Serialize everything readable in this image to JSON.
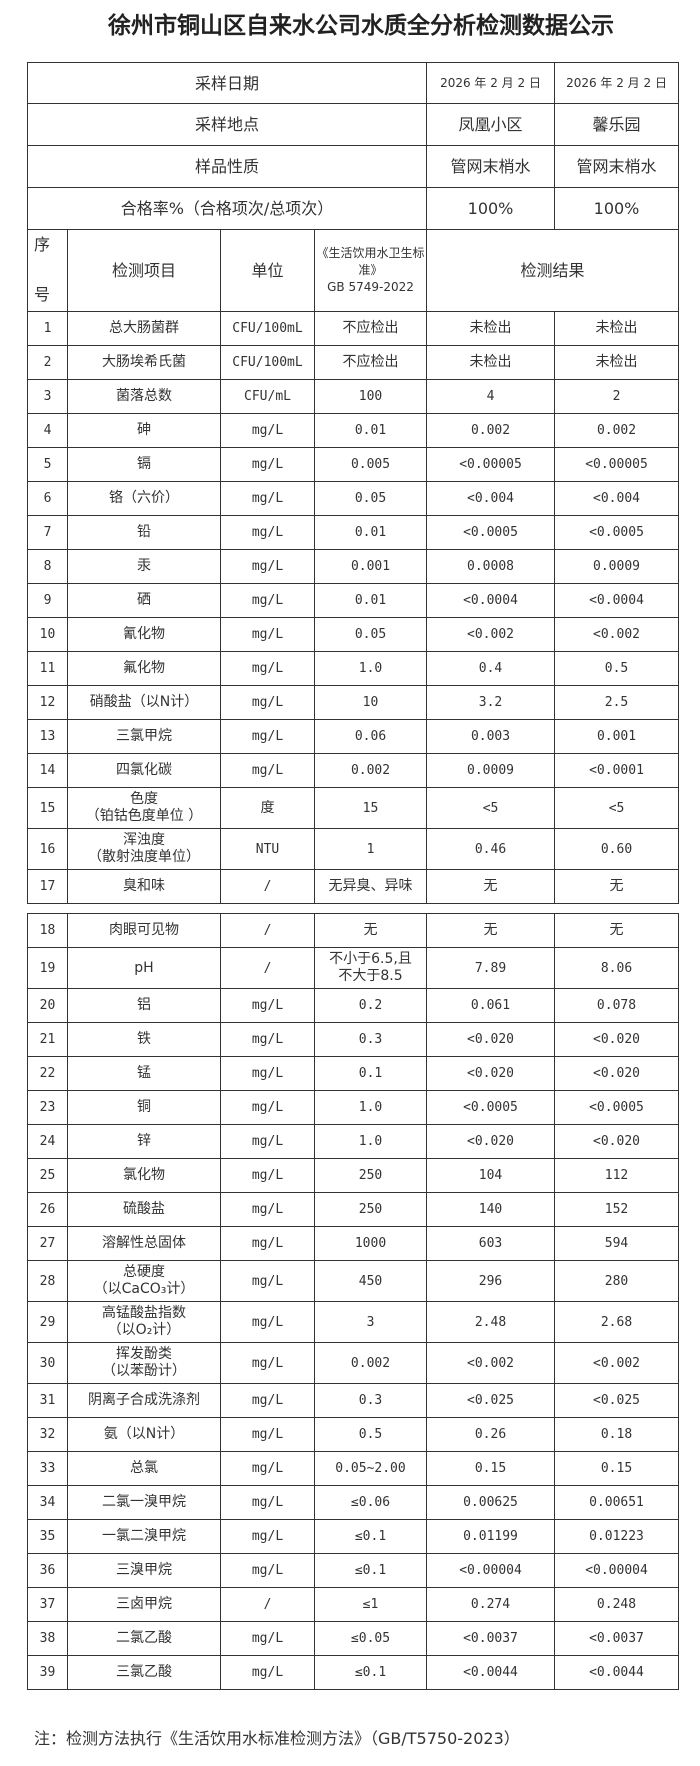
{
  "title": "徐州市铜山区自来水公司水质全分析检测数据公示",
  "header": {
    "sampling_date_label": "采样日期",
    "sampling_dates": [
      "2026 年 2 月 2 日",
      "2026 年 2 月 2 日"
    ],
    "sampling_site_label": "采样地点",
    "sampling_sites": [
      "凤凰小区",
      "馨乐园"
    ],
    "sample_type_label": "样品性质",
    "sample_types": [
      "管网末梢水",
      "管网末梢水"
    ],
    "pass_rate_label": "合格率%（合格项次/总项次）",
    "pass_rates": [
      "100%",
      "100%"
    ],
    "col_seq_1": "序",
    "col_seq_2": "号",
    "col_item": "检测项目",
    "col_unit": "单位",
    "col_standard": "《生活饮用水卫生标准》\nGB 5749-2022",
    "col_result": "检测结果"
  },
  "rows": [
    [
      "1",
      "总大肠菌群",
      "CFU/100mL",
      "不应检出",
      "未检出",
      "未检出"
    ],
    [
      "2",
      "大肠埃希氏菌",
      "CFU/100mL",
      "不应检出",
      "未检出",
      "未检出"
    ],
    [
      "3",
      "菌落总数",
      "CFU/mL",
      "100",
      "4",
      "2"
    ],
    [
      "4",
      "砷",
      "mg/L",
      "0.01",
      "0.002",
      "0.002"
    ],
    [
      "5",
      "镉",
      "mg/L",
      "0.005",
      "<0.00005",
      "<0.00005"
    ],
    [
      "6",
      "铬（六价）",
      "mg/L",
      "0.05",
      "<0.004",
      "<0.004"
    ],
    [
      "7",
      "铅",
      "mg/L",
      "0.01",
      "<0.0005",
      "<0.0005"
    ],
    [
      "8",
      "汞",
      "mg/L",
      "0.001",
      "0.0008",
      "0.0009"
    ],
    [
      "9",
      "硒",
      "mg/L",
      "0.01",
      "<0.0004",
      "<0.0004"
    ],
    [
      "10",
      "氰化物",
      "mg/L",
      "0.05",
      "<0.002",
      "<0.002"
    ],
    [
      "11",
      "氟化物",
      "mg/L",
      "1.0",
      "0.4",
      "0.5"
    ],
    [
      "12",
      "硝酸盐（以N计）",
      "mg/L",
      "10",
      "3.2",
      "2.5"
    ],
    [
      "13",
      "三氯甲烷",
      "mg/L",
      "0.06",
      "0.003",
      "0.001"
    ],
    [
      "14",
      "四氯化碳",
      "mg/L",
      "0.002",
      "0.0009",
      "<0.0001"
    ],
    [
      "15",
      "色度\n（铂钴色度单位 ）",
      "度",
      "15",
      "<5",
      "<5"
    ],
    [
      "16",
      "浑浊度\n（散射浊度单位）",
      "NTU",
      "1",
      "0.46",
      "0.60"
    ],
    [
      "17",
      "臭和味",
      "/",
      "无异臭、异味",
      "无",
      "无"
    ]
  ],
  "rows2": [
    [
      "18",
      "肉眼可见物",
      "/",
      "无",
      "无",
      "无"
    ],
    [
      "19",
      "pH",
      "/",
      "不小于6.5,且\n不大于8.5",
      "7.89",
      "8.06"
    ],
    [
      "20",
      "铝",
      "mg/L",
      "0.2",
      "0.061",
      "0.078"
    ],
    [
      "21",
      "铁",
      "mg/L",
      "0.3",
      "<0.020",
      "<0.020"
    ],
    [
      "22",
      "锰",
      "mg/L",
      "0.1",
      "<0.020",
      "<0.020"
    ],
    [
      "23",
      "铜",
      "mg/L",
      "1.0",
      "<0.0005",
      "<0.0005"
    ],
    [
      "24",
      "锌",
      "mg/L",
      "1.0",
      "<0.020",
      "<0.020"
    ],
    [
      "25",
      "氯化物",
      "mg/L",
      "250",
      "104",
      "112"
    ],
    [
      "26",
      "硫酸盐",
      "mg/L",
      "250",
      "140",
      "152"
    ],
    [
      "27",
      "溶解性总固体",
      "mg/L",
      "1000",
      "603",
      "594"
    ],
    [
      "28",
      "总硬度\n（以CaCO₃计）",
      "mg/L",
      "450",
      "296",
      "280"
    ],
    [
      "29",
      "高锰酸盐指数\n（以O₂计）",
      "mg/L",
      "3",
      "2.48",
      "2.68"
    ],
    [
      "30",
      "挥发酚类\n（以苯酚计）",
      "mg/L",
      "0.002",
      "<0.002",
      "<0.002"
    ],
    [
      "31",
      "阴离子合成洗涤剂",
      "mg/L",
      "0.3",
      "<0.025",
      "<0.025"
    ],
    [
      "32",
      "氨（以N计）",
      "mg/L",
      "0.5",
      "0.26",
      "0.18"
    ],
    [
      "33",
      "总氯",
      "mg/L",
      "0.05~2.00",
      "0.15",
      "0.15"
    ],
    [
      "34",
      "二氯一溴甲烷",
      "mg/L",
      "≤0.06",
      "0.00625",
      "0.00651"
    ],
    [
      "35",
      "一氯二溴甲烷",
      "mg/L",
      "≤0.1",
      "0.01199",
      "0.01223"
    ],
    [
      "36",
      "三溴甲烷",
      "mg/L",
      "≤0.1",
      "<0.00004",
      "<0.00004"
    ],
    [
      "37",
      "三卤甲烷",
      "/",
      "≤1",
      "0.274",
      "0.248"
    ],
    [
      "38",
      "二氯乙酸",
      "mg/L",
      "≤0.05",
      "<0.0037",
      "<0.0037"
    ],
    [
      "39",
      "三氯乙酸",
      "mg/L",
      "≤0.1",
      "<0.0044",
      "<0.0044"
    ]
  ],
  "note": "注：检测方法执行《生活饮用水标准检测方法》（GB/T5750-2023）"
}
